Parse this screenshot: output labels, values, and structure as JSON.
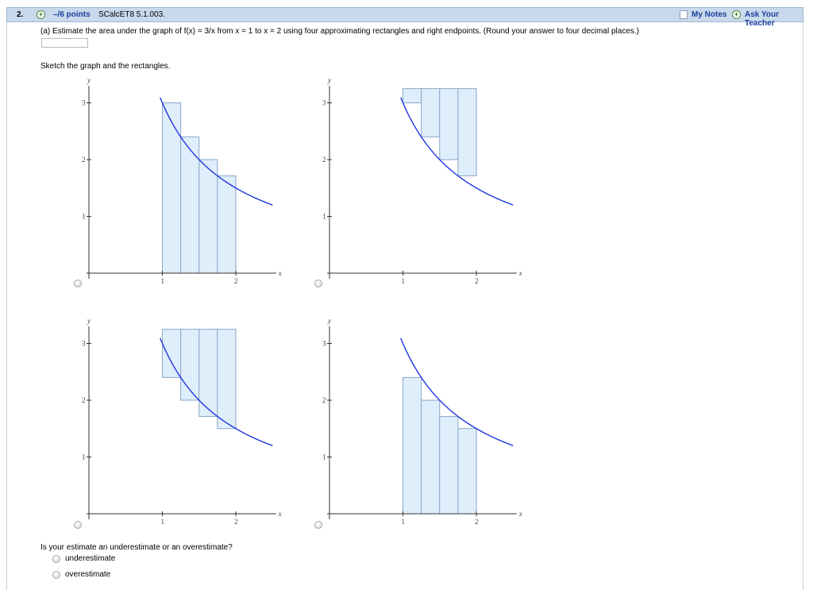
{
  "header": {
    "question_number": "2.",
    "points": "–/6 points",
    "problem_code": "SCalcET8 5.1.003.",
    "my_notes": "My Notes",
    "ask_teacher": "Ask Your Teacher"
  },
  "question": {
    "part_a_text": "(a) Estimate the area under the graph of f(x) = 3/x from x = 1 to x = 2 using four approximating rectangles and right endpoints. (Round your answer to four decimal places.)",
    "answer_value": "",
    "sketch_prompt": "Sketch the graph and the rectangles.",
    "estimate_question": "Is your estimate an underestimate or an overestimate?",
    "options": [
      "underestimate",
      "overestimate"
    ]
  },
  "colors": {
    "curve": "#1f35e0",
    "rect_fill": "#dfeefb",
    "rect_stroke": "#8aa7c8",
    "header_bg": "#c8d9ec",
    "link": "#1a3f9c"
  },
  "chart_data": [
    {
      "type": "area",
      "function": "3/x",
      "xlabel": "x",
      "ylabel": "y",
      "xlim": [
        0,
        2.5
      ],
      "ylim": [
        0,
        3.3
      ],
      "xticks": [
        1,
        2
      ],
      "yticks": [
        1,
        2,
        3
      ],
      "curve_domain": [
        0.97,
        2.5
      ],
      "rectangles": [
        {
          "x0": 1.0,
          "x1": 1.25,
          "height": 3.0
        },
        {
          "x0": 1.25,
          "x1": 1.5,
          "height": 2.4
        },
        {
          "x0": 1.5,
          "x1": 1.75,
          "height": 2.0
        },
        {
          "x0": 1.75,
          "x1": 2.0,
          "height": 1.7143
        }
      ]
    },
    {
      "type": "area",
      "function": "3/x",
      "xlabel": "x",
      "ylabel": "y",
      "xlim": [
        0,
        2.5
      ],
      "ylim": [
        0,
        3.3
      ],
      "xticks": [
        1,
        2
      ],
      "yticks": [
        1,
        2,
        3
      ],
      "curve_domain": [
        0.97,
        2.5
      ],
      "rectangles": [
        {
          "x0": 1.0,
          "x1": 1.25,
          "y0": 3.0,
          "y1": 3.25
        },
        {
          "x0": 1.25,
          "x1": 1.5,
          "y0": 2.4,
          "y1": 3.25
        },
        {
          "x0": 1.5,
          "x1": 1.75,
          "y0": 2.0,
          "y1": 3.25
        },
        {
          "x0": 1.75,
          "x1": 2.0,
          "y0": 1.7143,
          "y1": 3.25
        }
      ]
    },
    {
      "type": "area",
      "function": "3/x",
      "xlabel": "x",
      "ylabel": "y",
      "xlim": [
        0,
        2.5
      ],
      "ylim": [
        0,
        3.3
      ],
      "xticks": [
        1,
        2
      ],
      "yticks": [
        1,
        2,
        3
      ],
      "curve_domain": [
        0.97,
        2.5
      ],
      "rectangles": [
        {
          "x0": 1.0,
          "x1": 1.25,
          "y0": 2.4,
          "y1": 3.25
        },
        {
          "x0": 1.25,
          "x1": 1.5,
          "y0": 2.0,
          "y1": 3.25
        },
        {
          "x0": 1.5,
          "x1": 1.75,
          "y0": 1.7143,
          "y1": 3.25
        },
        {
          "x0": 1.75,
          "x1": 2.0,
          "y0": 1.5,
          "y1": 3.25
        }
      ]
    },
    {
      "type": "area",
      "function": "3/x",
      "xlabel": "x",
      "ylabel": "y",
      "xlim": [
        0,
        2.5
      ],
      "ylim": [
        0,
        3.3
      ],
      "xticks": [
        1,
        2
      ],
      "yticks": [
        1,
        2,
        3
      ],
      "curve_domain": [
        0.97,
        2.5
      ],
      "rectangles": [
        {
          "x0": 1.0,
          "x1": 1.25,
          "height": 2.4
        },
        {
          "x0": 1.25,
          "x1": 1.5,
          "height": 2.0
        },
        {
          "x0": 1.5,
          "x1": 1.75,
          "height": 1.7143
        },
        {
          "x0": 1.75,
          "x1": 2.0,
          "height": 1.5
        }
      ]
    }
  ]
}
